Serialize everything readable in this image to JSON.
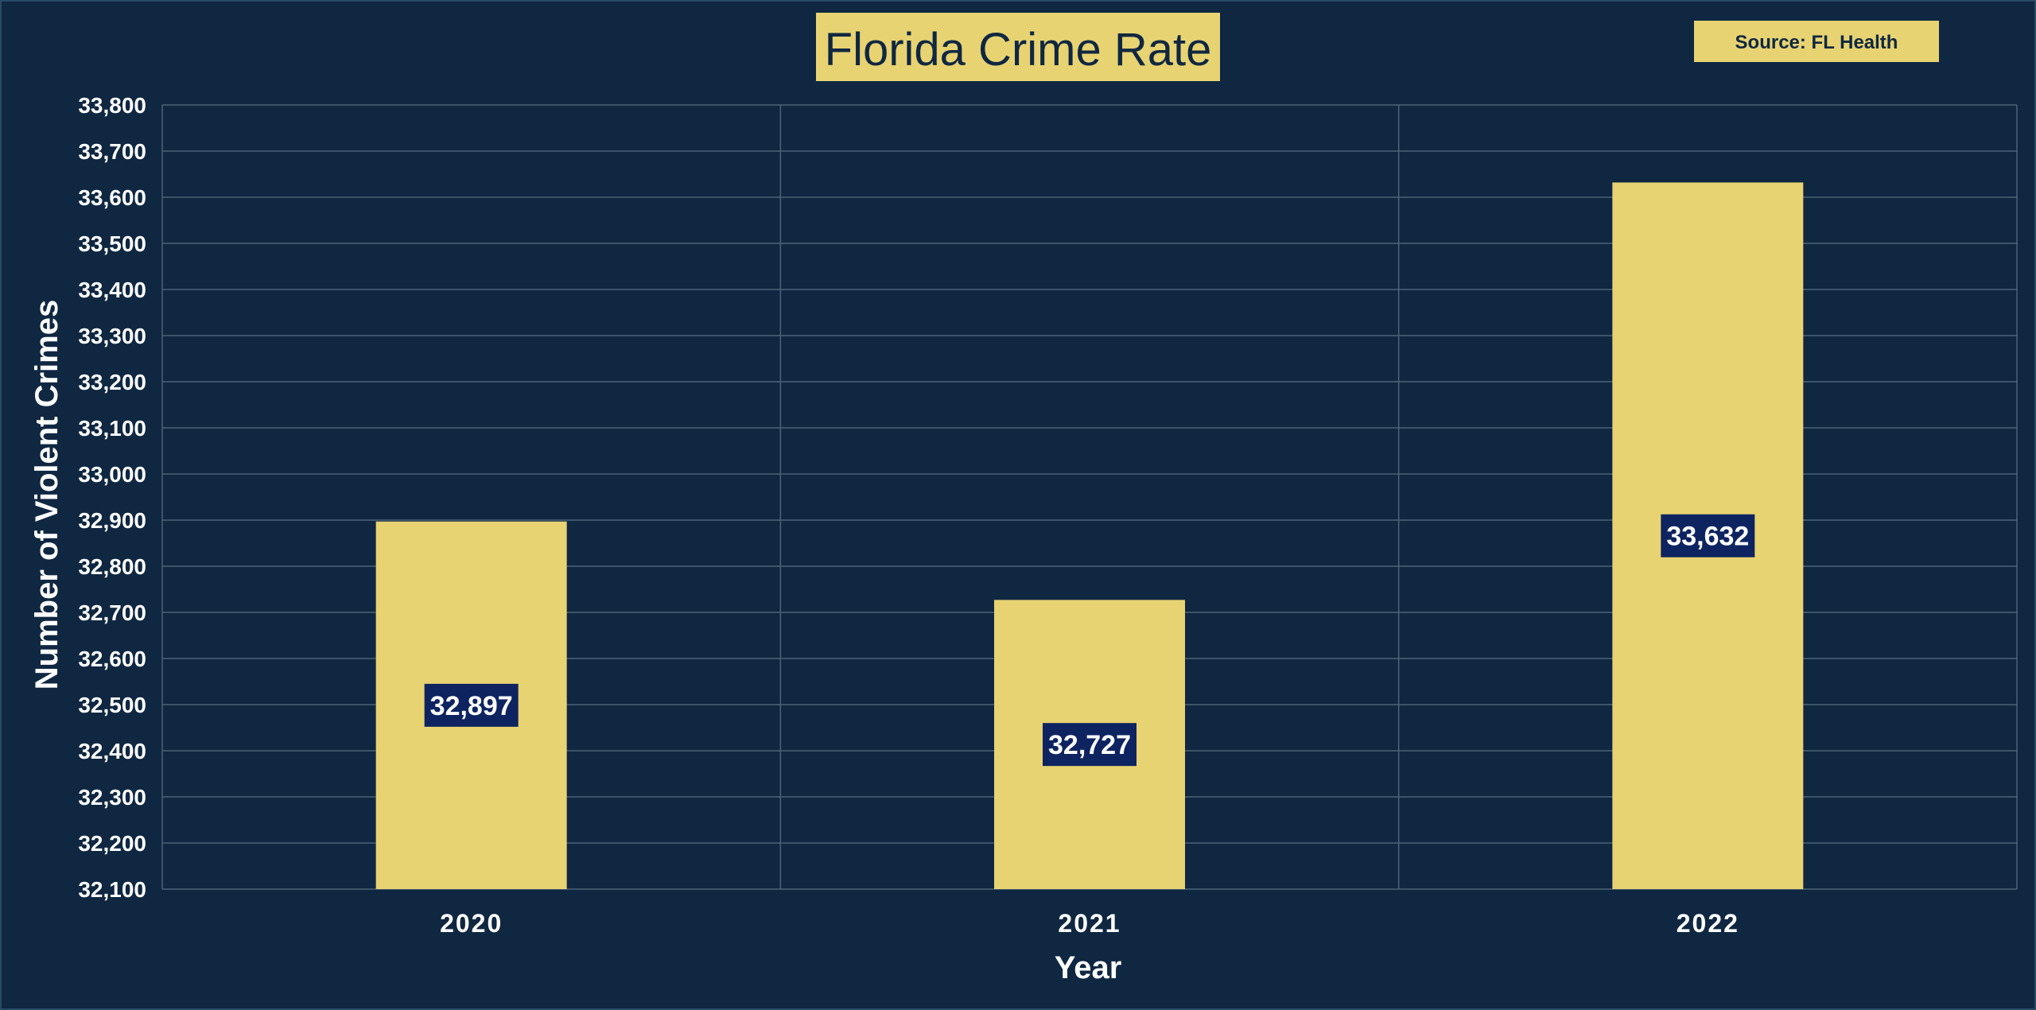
{
  "colors": {
    "background": "#0f2741",
    "bar": "#e8d372",
    "grid": "#4a6478",
    "label_box": "#0d2461",
    "text": "#ffffff"
  },
  "source_label": "Source: FL Health",
  "chart_data": {
    "type": "bar",
    "title": "Florida Crime Rate",
    "xlabel": "Year",
    "ylabel": "Number of Violent Crimes",
    "categories": [
      "2020",
      "2021",
      "2022"
    ],
    "values": [
      32897,
      32727,
      33632
    ],
    "data_labels": [
      "32,897",
      "32,727",
      "33,632"
    ],
    "ylim": [
      32100,
      33800
    ],
    "ytick_step": 100,
    "ytick_labels": [
      "33,800",
      "33,700",
      "33,600",
      "33,500",
      "33,400",
      "33,300",
      "33,200",
      "33,100",
      "33,000",
      "32,900",
      "32,800",
      "32,700",
      "32,600",
      "32,500",
      "32,400",
      "32,300",
      "32,200",
      "32,100"
    ],
    "grid": true,
    "legend": "none"
  }
}
